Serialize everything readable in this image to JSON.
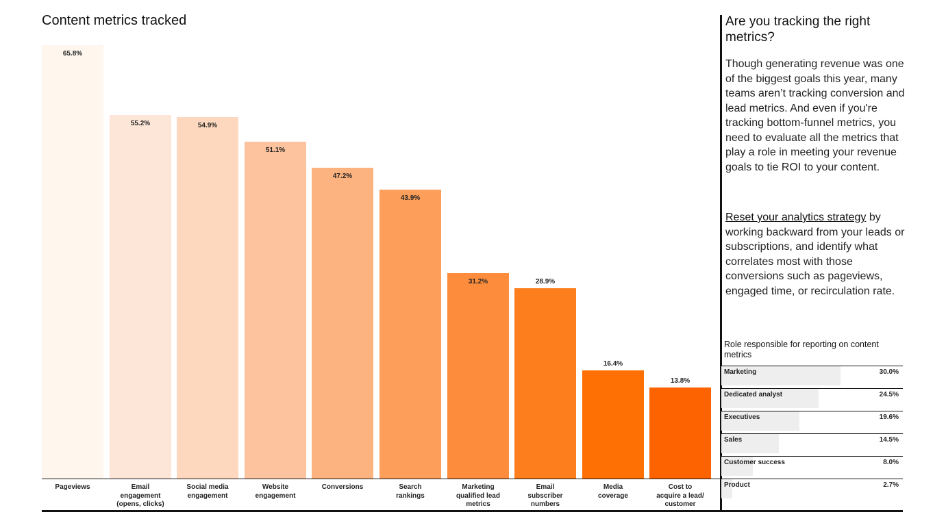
{
  "chart_data": {
    "type": "bar",
    "title": "Content metrics tracked",
    "xlabel": "",
    "ylabel": "",
    "ylim": [
      0,
      65.8
    ],
    "grid": false,
    "categories": [
      "Pageviews",
      "Email engagement (opens, clicks)",
      "Social media engagement",
      "Website engagement",
      "Conversions",
      "Search rankings",
      "Marketing qualified lead metrics",
      "Email subscriber numbers",
      "Media coverage",
      "Cost to acquire a lead/ customer"
    ],
    "category_lines": [
      [
        "Pageviews"
      ],
      [
        "Email",
        "engagement",
        "(opens, clicks)"
      ],
      [
        "Social media",
        "engagement"
      ],
      [
        "Website",
        "engagement"
      ],
      [
        "Conversions"
      ],
      [
        "Search",
        "rankings"
      ],
      [
        "Marketing",
        "qualified lead",
        "metrics"
      ],
      [
        "Email",
        "subscriber",
        "numbers"
      ],
      [
        "Media",
        "coverage"
      ],
      [
        "Cost to",
        "acquire a lead/",
        "customer"
      ]
    ],
    "values": [
      65.8,
      55.2,
      54.9,
      51.1,
      47.2,
      43.9,
      31.2,
      28.9,
      16.4,
      13.8
    ],
    "value_labels": [
      "65.8%",
      "55.2%",
      "54.9%",
      "51.1%",
      "47.2%",
      "43.9%",
      "31.2%",
      "28.9%",
      "16.4%",
      "13.8%"
    ],
    "colors": [
      "#FFF7EE",
      "#FDE6D8",
      "#FDD8BE",
      "#FDC39E",
      "#FDB380",
      "#FD9F5A",
      "#FD8C3C",
      "#FD7E1C",
      "#FE7004",
      "#FE6302"
    ],
    "label_outside": [
      false,
      false,
      false,
      false,
      false,
      false,
      false,
      true,
      true,
      true
    ]
  },
  "sidebar": {
    "title": "Are you tracking the right metrics?",
    "paragraph1": "Though generating revenue was one of the biggest goals this year, many teams aren’t tracking conversion and lead metrics. And even if you're tracking bottom-funnel metrics, you need to evaluate all the metrics that play a role in meeting your revenue goals to tie ROI to your content.",
    "link_text": "Reset your analytics strategy",
    "paragraph2": " by working backward from your leads or subscriptions, and identify what correlates most with those conversions such as pageviews, engaged time, or recirculation rate."
  },
  "roles": {
    "title": "Role responsible for reporting on content metrics",
    "items": [
      {
        "name": "Marketing",
        "value": 30.0,
        "label": "30.0%"
      },
      {
        "name": "Dedicated analyst",
        "value": 24.5,
        "label": "24.5%"
      },
      {
        "name": "Executives",
        "value": 19.6,
        "label": "19.6%"
      },
      {
        "name": "Sales",
        "value": 14.5,
        "label": "14.5%"
      },
      {
        "name": "Customer success",
        "value": 8.0,
        "label": "8.0%"
      },
      {
        "name": "Product",
        "value": 2.7,
        "label": "2.7%"
      }
    ],
    "fill_color": "#eeeeee"
  }
}
